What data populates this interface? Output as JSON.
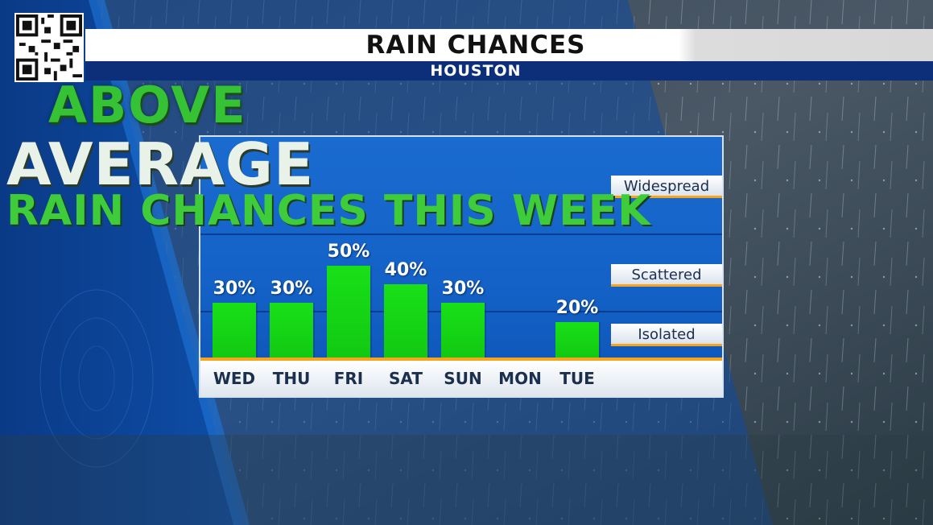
{
  "banner": {
    "title": "RAIN CHANCES",
    "subtitle": "HOUSTON"
  },
  "headline": {
    "line1": "ABOVE",
    "line2": "AVERAGE",
    "line3": "RAIN CHANCES THIS WEEK"
  },
  "colors": {
    "bar": "#14d414",
    "panel": "#1565c8",
    "banner_dark": "#0d2f7a",
    "axis": "#f6a51c",
    "headline_green": "#3fcc3a"
  },
  "chart_data": {
    "type": "bar",
    "categories": [
      "WED",
      "THU",
      "FRI",
      "SAT",
      "SUN",
      "MON",
      "TUE"
    ],
    "values": [
      30,
      30,
      50,
      40,
      30,
      0,
      20
    ],
    "value_labels": [
      "30%",
      "30%",
      "50%",
      "40%",
      "30%",
      "",
      "20%"
    ],
    "ylim": [
      0,
      100
    ],
    "bands": [
      {
        "label": "Isolated",
        "from": 0,
        "to": 25
      },
      {
        "label": "Scattered",
        "from": 25,
        "to": 65
      },
      {
        "label": "Widespread",
        "from": 65,
        "to": 100
      }
    ],
    "grid": false,
    "legend": "none"
  }
}
